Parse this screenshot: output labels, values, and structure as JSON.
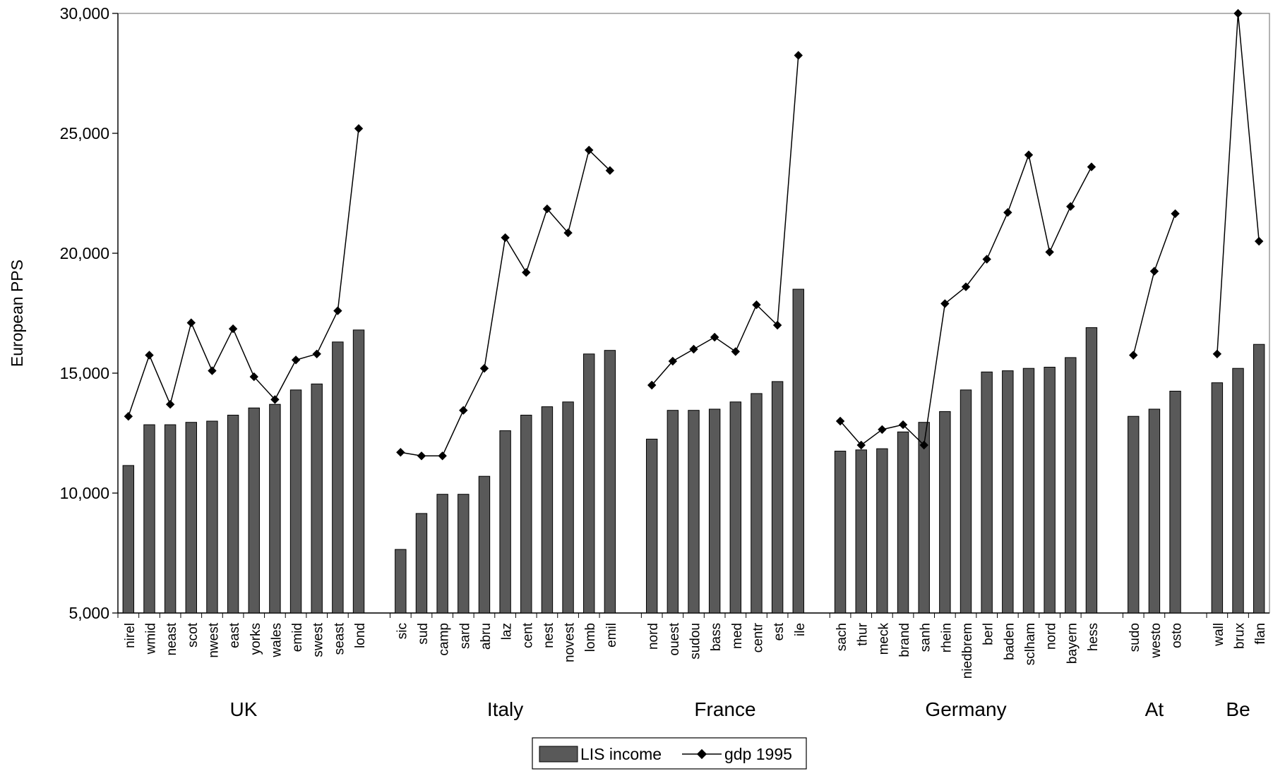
{
  "chart_data": {
    "type": "bar",
    "ylabel": "European PPS",
    "ylim": [
      5000,
      30000
    ],
    "yticks": [
      5000,
      10000,
      15000,
      20000,
      25000,
      30000
    ],
    "ytick_labels": [
      "5,000",
      "10,000",
      "15,000",
      "20,000",
      "25,000",
      "30,000"
    ],
    "grid": false,
    "legend_position": "bottom-center",
    "colors": {
      "bar": "#595959",
      "line": "#000000"
    },
    "legend": [
      {
        "label": "LIS income",
        "kind": "bar"
      },
      {
        "label": "gdp 1995",
        "kind": "line-diamond"
      }
    ],
    "groups": [
      {
        "name": "UK",
        "categories": [
          "nirel",
          "wmid",
          "neast",
          "scot",
          "nwest",
          "east",
          "yorks",
          "wales",
          "emid",
          "swest",
          "seast",
          "lond"
        ],
        "income": [
          11150,
          12850,
          12850,
          12950,
          13000,
          13250,
          13550,
          13700,
          14300,
          14550,
          16300,
          16800
        ],
        "gdp": [
          13200,
          15750,
          13700,
          17100,
          15100,
          16850,
          14850,
          13900,
          15550,
          15800,
          17600,
          25200
        ]
      },
      {
        "name": "Italy",
        "categories": [
          "sic",
          "sud",
          "camp",
          "sard",
          "abru",
          "laz",
          "cent",
          "nest",
          "novest",
          "lomb",
          "emil"
        ],
        "income": [
          7650,
          9150,
          9950,
          9950,
          10700,
          12600,
          13250,
          13600,
          13800,
          15800,
          15950
        ],
        "gdp": [
          11700,
          11550,
          11550,
          13450,
          15200,
          20650,
          19200,
          21850,
          20850,
          24300,
          23450
        ]
      },
      {
        "name": "France",
        "categories": [
          "nord",
          "ouest",
          "sudou",
          "bass",
          "med",
          "centr",
          "est",
          "ile"
        ],
        "income": [
          12250,
          13450,
          13450,
          13500,
          13800,
          14150,
          14650,
          18500
        ],
        "gdp": [
          14500,
          15500,
          16000,
          16500,
          15900,
          17850,
          17000,
          28250
        ]
      },
      {
        "name": "Germany",
        "categories": [
          "sach",
          "thur",
          "meck",
          "brand",
          "sanh",
          "rhein",
          "niedbrem",
          "berl",
          "baden",
          "sclham",
          "nord",
          "bayern",
          "hess"
        ],
        "income": [
          11750,
          11800,
          11850,
          12550,
          12950,
          13400,
          14300,
          15050,
          15100,
          15200,
          15250,
          15650,
          16900
        ],
        "gdp": [
          13000,
          12000,
          12650,
          12850,
          12000,
          17900,
          18600,
          19750,
          21700,
          24100,
          20050,
          21950,
          23600
        ]
      },
      {
        "name": "At",
        "categories": [
          "sudo",
          "westo",
          "osto"
        ],
        "income": [
          13200,
          13500,
          14250
        ],
        "gdp": [
          15750,
          19250,
          21650
        ]
      },
      {
        "name": "Be",
        "categories": [
          "wall",
          "brux",
          "flan"
        ],
        "income": [
          14600,
          15200,
          16200
        ],
        "gdp": [
          15800,
          30000,
          20500
        ]
      }
    ]
  }
}
